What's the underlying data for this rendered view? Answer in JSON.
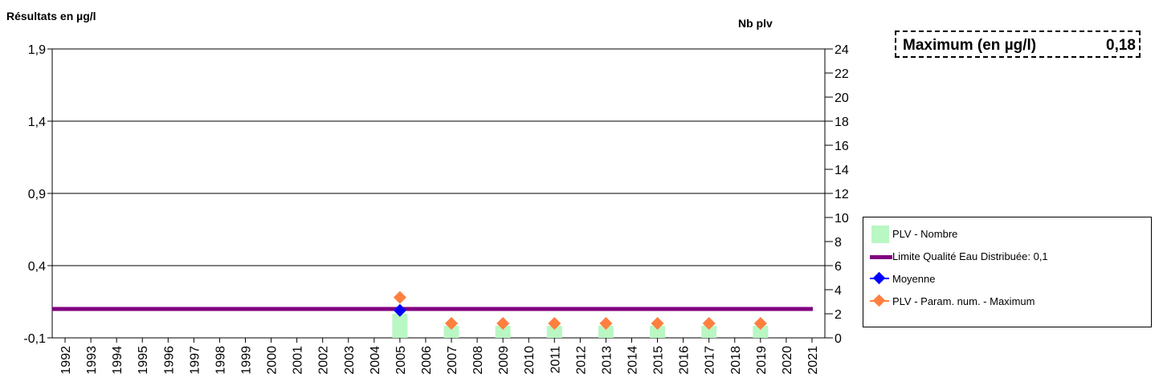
{
  "header": {
    "left_axis_title": "Résultats en µg/l",
    "right_axis_title": "Nb plv"
  },
  "max_box": {
    "label": "Maximum (en µg/l)",
    "value": "0,18"
  },
  "legend": {
    "items": [
      {
        "label": "PLV - Nombre"
      },
      {
        "label": "Limite Qualité Eau Distribuée: 0,1"
      },
      {
        "label": "Moyenne"
      },
      {
        "label": "PLV - Param. num. - Maximum"
      }
    ]
  },
  "chart_data": {
    "type": "bar",
    "categories": [
      "1992",
      "1993",
      "1994",
      "1995",
      "1996",
      "1997",
      "1998",
      "1999",
      "2000",
      "2001",
      "2002",
      "2003",
      "2004",
      "2005",
      "2006",
      "2007",
      "2008",
      "2009",
      "2010",
      "2011",
      "2012",
      "2013",
      "2014",
      "2015",
      "2016",
      "2017",
      "2018",
      "2019",
      "2020",
      "2021"
    ],
    "y_left": {
      "ticks": [
        "-0,1",
        "0,4",
        "0,9",
        "1,4",
        "1,9"
      ],
      "range": [
        -0.1,
        1.9
      ]
    },
    "y_right": {
      "ticks": [
        "0",
        "2",
        "4",
        "6",
        "8",
        "10",
        "12",
        "14",
        "16",
        "18",
        "20",
        "22",
        "24"
      ],
      "range": [
        0,
        24
      ]
    },
    "grid": true,
    "series": [
      {
        "name": "PLV - Nombre",
        "kind": "bar",
        "axis": "right",
        "color": "#b9f7c3",
        "values": [
          null,
          null,
          null,
          null,
          null,
          null,
          null,
          null,
          null,
          null,
          null,
          null,
          null,
          2,
          null,
          1,
          null,
          1,
          null,
          1,
          null,
          1,
          null,
          1,
          null,
          1,
          null,
          1,
          null,
          null
        ]
      },
      {
        "name": "Limite Qualité Eau Distribuée: 0,1",
        "kind": "line",
        "axis": "left",
        "color": "#800080",
        "value": 0.1
      },
      {
        "name": "Moyenne",
        "kind": "marker",
        "axis": "left",
        "color": "#0000ff",
        "values": [
          null,
          null,
          null,
          null,
          null,
          null,
          null,
          null,
          null,
          null,
          null,
          null,
          null,
          0.09,
          null,
          null,
          null,
          null,
          null,
          null,
          null,
          null,
          null,
          null,
          null,
          null,
          null,
          null,
          null,
          null
        ]
      },
      {
        "name": "PLV - Param. num. - Maximum",
        "kind": "marker",
        "axis": "left",
        "color": "#ff7f3f",
        "values": [
          null,
          null,
          null,
          null,
          null,
          null,
          null,
          null,
          null,
          null,
          null,
          null,
          null,
          0.18,
          null,
          0.0,
          null,
          0.0,
          null,
          0.0,
          null,
          0.0,
          null,
          0.0,
          null,
          0.0,
          null,
          0.0,
          null,
          null
        ]
      }
    ]
  }
}
